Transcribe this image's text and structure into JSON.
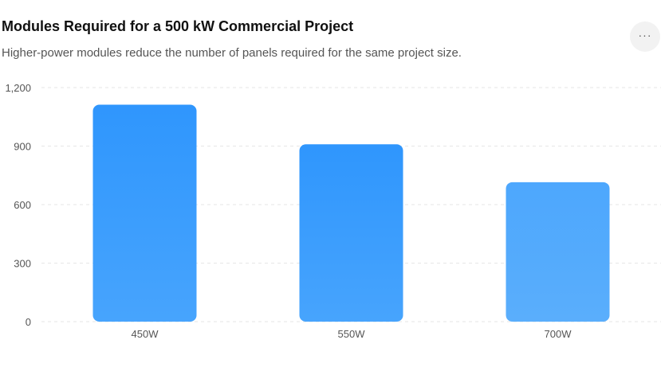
{
  "header": {
    "title": "Modules Required for a 500 kW Commercial Project",
    "subtitle": "Higher-power modules reduce the number of panels required for the same project size.",
    "more_icon": "more-horizontal-icon",
    "more_label": "···"
  },
  "chart_data": {
    "type": "bar",
    "categories": [
      "450W",
      "550W",
      "700W"
    ],
    "values": [
      1112,
      909,
      715
    ],
    "title": "Modules Required for a 500 kW Commercial Project",
    "subtitle": "Higher-power modules reduce the number of panels required for the same project size.",
    "xlabel": "",
    "ylabel": "",
    "ylim": [
      0,
      1200
    ],
    "yticks": [
      0,
      300,
      600,
      900,
      1200
    ],
    "ytick_labels": [
      "0",
      "300",
      "600",
      "900",
      "1,200"
    ],
    "grid": true,
    "legend": "none",
    "colors": {
      "bar_top": "#2f96fd",
      "bar_bottom": "#47a4fd",
      "bar_last_top": "#4da7fd",
      "bar_last_bottom": "#5aaefc",
      "grid": "#e6e6e6"
    }
  }
}
